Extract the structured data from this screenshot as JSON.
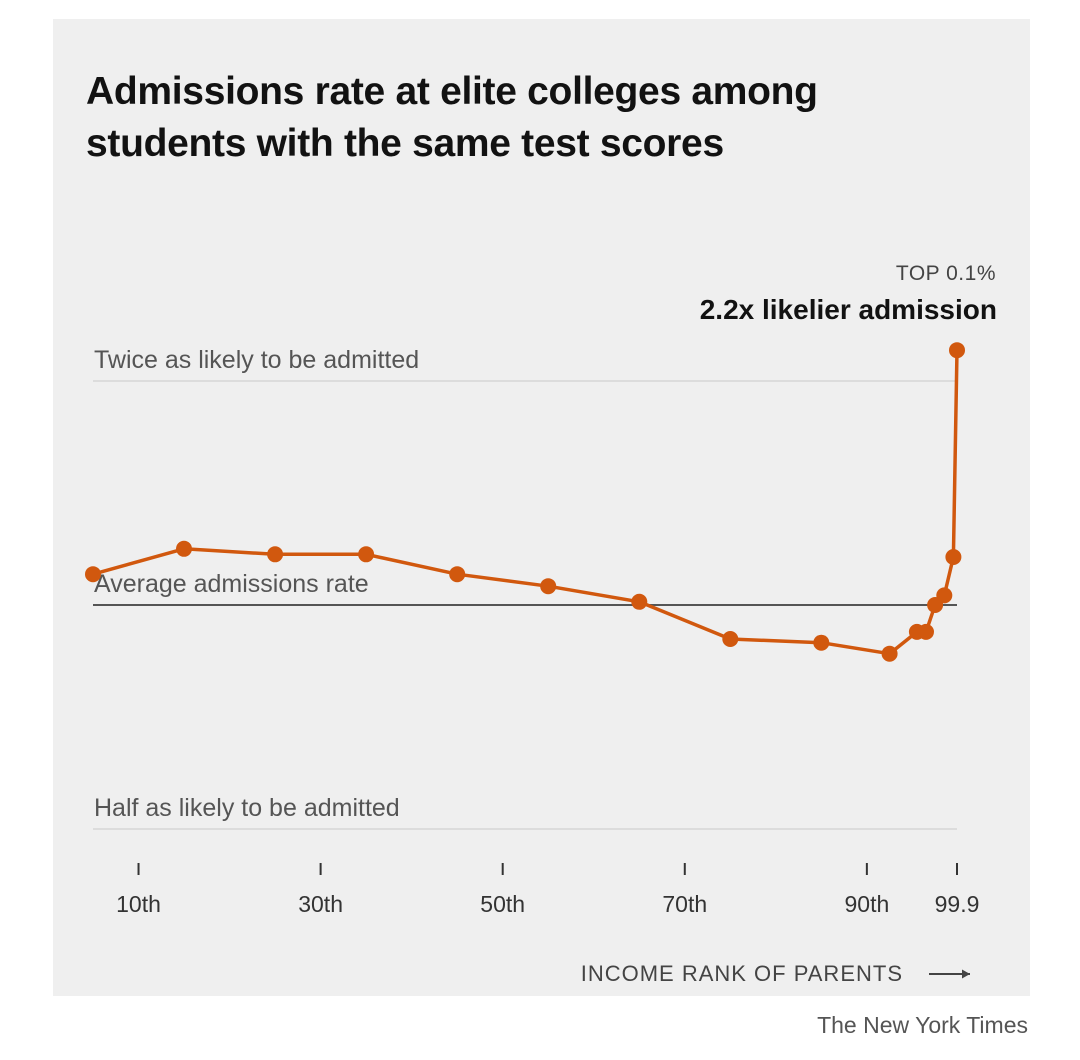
{
  "chart_data": {
    "type": "line",
    "title_lines": [
      "Admissions rate at elite colleges among",
      "students with the same test scores"
    ],
    "xlabel": "INCOME RANK OF PARENTS",
    "xlabel_arrow": "⟶",
    "x_ticks": [
      {
        "value": 10,
        "label": "10th"
      },
      {
        "value": 30,
        "label": "30th"
      },
      {
        "value": 50,
        "label": "50th"
      },
      {
        "value": 70,
        "label": "70th"
      },
      {
        "value": 90,
        "label": "90th"
      },
      {
        "value": 99.9,
        "label": "99.9"
      }
    ],
    "reference_lines": [
      {
        "value": 2.0,
        "label": "Twice as likely to be admitted",
        "style": "light"
      },
      {
        "value": 1.0,
        "label": "Average admissions rate",
        "style": "dark"
      },
      {
        "value": 0.5,
        "label": "Half as likely to be admitted",
        "style": "light"
      }
    ],
    "y_scale": "log2",
    "ylim": [
      0.5,
      2.0
    ],
    "xlim": [
      5,
      99.9
    ],
    "series": [
      {
        "color": "#d1580e",
        "points": [
          {
            "x": 5,
            "y": 1.1
          },
          {
            "x": 15,
            "y": 1.19
          },
          {
            "x": 25,
            "y": 1.17
          },
          {
            "x": 35,
            "y": 1.17
          },
          {
            "x": 45,
            "y": 1.1
          },
          {
            "x": 55,
            "y": 1.06
          },
          {
            "x": 65,
            "y": 1.01
          },
          {
            "x": 75,
            "y": 0.9
          },
          {
            "x": 85,
            "y": 0.89
          },
          {
            "x": 92.5,
            "y": 0.86
          },
          {
            "x": 95.5,
            "y": 0.92
          },
          {
            "x": 96.5,
            "y": 0.92
          },
          {
            "x": 97.5,
            "y": 1.0
          },
          {
            "x": 98.5,
            "y": 1.03
          },
          {
            "x": 99.5,
            "y": 1.16
          },
          {
            "x": 99.9,
            "y": 2.2
          }
        ]
      }
    ],
    "annotation": {
      "small": "TOP 0.1%",
      "bold": "2.2x likelier admission"
    },
    "credit": "The New York Times"
  }
}
